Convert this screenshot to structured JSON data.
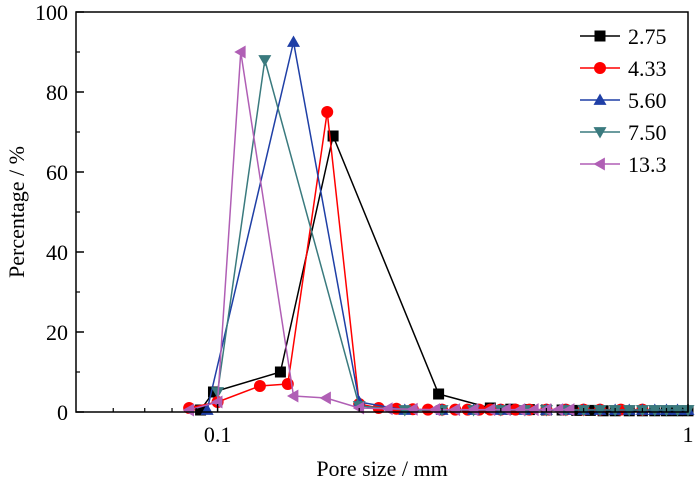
{
  "chart_data": {
    "type": "line",
    "xscale": "log",
    "xlabel": "Pore size / mm",
    "ylabel": "Percentage / %",
    "xlim": [
      0.05,
      1
    ],
    "ylim": [
      0,
      100
    ],
    "xticks": [
      0.1,
      1
    ],
    "xtick_labels": [
      "0.1",
      "1"
    ],
    "yticks": [
      0,
      20,
      40,
      60,
      80,
      100
    ],
    "ytick_labels": [
      "0",
      "20",
      "40",
      "60",
      "80",
      "100"
    ],
    "grid": false,
    "legend_position": "top-right",
    "series": [
      {
        "name": "2.75",
        "color": "#000000",
        "marker": "square",
        "x": [
          0.092,
          0.098,
          0.136,
          0.176,
          0.295,
          0.38,
          0.42,
          0.46,
          0.5,
          0.54,
          0.58,
          0.62,
          0.66,
          0.7,
          0.75,
          0.8,
          0.85,
          0.9,
          0.95,
          1.0
        ],
        "y": [
          0.5,
          5.0,
          10.0,
          69.0,
          4.5,
          1.0,
          0.7,
          0.6,
          0.5,
          0.5,
          0.4,
          0.4,
          0.3,
          0.3,
          0.3,
          0.3,
          0.3,
          0.3,
          0.3,
          0.3
        ]
      },
      {
        "name": "4.33",
        "color": "#ff0000",
        "marker": "circle",
        "x": [
          0.087,
          0.1,
          0.123,
          0.141,
          0.171,
          0.2,
          0.22,
          0.24,
          0.26,
          0.28,
          0.3,
          0.32,
          0.34,
          0.36,
          0.38,
          0.4,
          0.43,
          0.46,
          0.5,
          0.55,
          0.6,
          0.65,
          0.72,
          0.8
        ],
        "y": [
          1.0,
          2.5,
          6.5,
          7.0,
          75.0,
          2.0,
          1.0,
          0.8,
          0.7,
          0.6,
          0.6,
          0.6,
          0.6,
          0.6,
          0.6,
          0.6,
          0.6,
          0.6,
          0.6,
          0.6,
          0.6,
          0.6,
          0.6,
          0.6
        ]
      },
      {
        "name": "5.60",
        "color": "#1f3fa6",
        "marker": "triangle-up",
        "x": [
          0.095,
          0.145,
          0.2,
          0.25,
          0.3,
          0.35,
          0.4,
          0.45,
          0.5,
          0.55,
          0.6,
          0.65,
          0.7,
          0.75,
          0.8,
          0.85,
          0.9,
          0.95,
          1.0
        ],
        "y": [
          0.5,
          92.5,
          2.5,
          0.5,
          0.5,
          0.5,
          0.5,
          0.5,
          0.5,
          0.5,
          0.5,
          0.5,
          0.5,
          0.5,
          0.5,
          0.5,
          0.5,
          0.5,
          0.5
        ]
      },
      {
        "name": "7.50",
        "color": "#3a7a7e",
        "marker": "triangle-down",
        "x": [
          0.1,
          0.126,
          0.2,
          0.25,
          0.3,
          0.35,
          0.4,
          0.45,
          0.5,
          0.55,
          0.6,
          0.65,
          0.7,
          0.75,
          0.8,
          0.85,
          0.9,
          0.95,
          1.0
        ],
        "y": [
          5.0,
          88.0,
          1.5,
          0.5,
          0.5,
          0.5,
          0.5,
          0.5,
          0.5,
          0.5,
          0.5,
          0.5,
          0.5,
          0.5,
          0.5,
          0.5,
          0.5,
          0.5,
          0.5
        ]
      },
      {
        "name": "13.3",
        "color": "#b05fb5",
        "marker": "triangle-left",
        "x": [
          0.087,
          0.1,
          0.112,
          0.145,
          0.17,
          0.2,
          0.23,
          0.26,
          0.29,
          0.32,
          0.35,
          0.38,
          0.41,
          0.44,
          0.47,
          0.5,
          0.53,
          0.56
        ],
        "y": [
          0.5,
          2.5,
          90.0,
          4.0,
          3.5,
          1.0,
          0.8,
          0.7,
          0.6,
          0.6,
          0.6,
          0.6,
          0.6,
          0.6,
          0.6,
          0.6,
          0.6,
          0.6
        ]
      }
    ]
  }
}
